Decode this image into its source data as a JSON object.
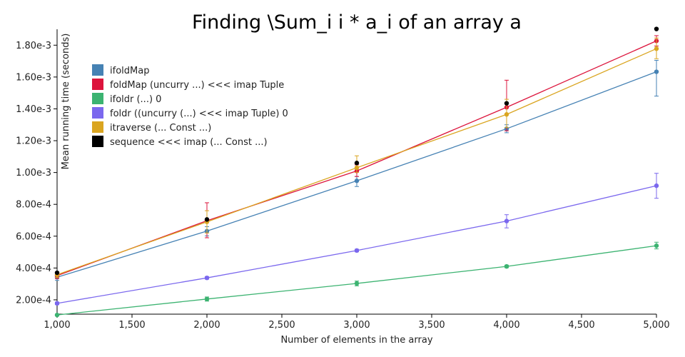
{
  "chart_data": {
    "type": "line",
    "title": "Finding \\Sum_i i * a_i of an array a",
    "xlabel": "Number of elements in the array",
    "ylabel": "Mean running time (seconds)",
    "xlim": [
      1000,
      5000
    ],
    "ylim": [
      0.00011,
      0.0019
    ],
    "x_ticks": [
      1000,
      1500,
      2000,
      2500,
      3000,
      3500,
      4000,
      4500,
      5000
    ],
    "x_tick_labels": [
      "1,000",
      "1,500",
      "2,000",
      "2,500",
      "3,000",
      "3,500",
      "4,000",
      "4,500",
      "5,000"
    ],
    "y_ticks": [
      0.0002,
      0.0004,
      0.0006,
      0.0008,
      0.001,
      0.0012,
      0.0014,
      0.0016,
      0.0018
    ],
    "y_tick_labels": [
      "2.00e-4",
      "4.00e-4",
      "6.00e-4",
      "8.00e-4",
      "1.00e-3",
      "1.20e-3",
      "1.40e-3",
      "1.60e-3",
      "1.80e-3"
    ],
    "grid": false,
    "legend_position": "top-left",
    "x": [
      1000,
      2000,
      3000,
      4000,
      5000
    ],
    "series": [
      {
        "name": "ifoldMap",
        "color": "#4682b4",
        "values": [
          0.000342,
          0.000632,
          0.000948,
          0.001275,
          0.001633
        ],
        "err_low": [
          0.000322,
          0.000602,
          0.000912,
          0.00125,
          0.00148
        ],
        "err_high": [
          0.000362,
          0.00066,
          0.000975,
          0.0013,
          0.001705
        ]
      },
      {
        "name": "foldMap (uncurry ...) <<< imap Tuple",
        "color": "#dc143c",
        "values": [
          0.000352,
          0.000697,
          0.00101,
          0.00141,
          0.001827
        ],
        "err_low": [
          0.000333,
          0.00059,
          0.000975,
          0.001262,
          0.001795
        ],
        "err_high": [
          0.000372,
          0.00081,
          0.001048,
          0.00158,
          0.00186
        ]
      },
      {
        "name": "ifoldr (...) 0",
        "color": "#3cb371",
        "values": [
          0.000105,
          0.000205,
          0.000303,
          0.00041,
          0.00054
        ],
        "err_low": [
          0.0001,
          0.000192,
          0.000288,
          0.000402,
          0.00052
        ],
        "err_high": [
          0.00011,
          0.000218,
          0.000318,
          0.000418,
          0.000562
        ]
      },
      {
        "name": "foldr ((uncurry (...) <<< imap Tuple) 0",
        "color": "#7b68ee",
        "values": [
          0.000178,
          0.000338,
          0.00051,
          0.000695,
          0.000917
        ],
        "err_low": [
          0.00017,
          0.00033,
          0.000502,
          0.000652,
          0.000838
        ],
        "err_high": [
          0.000186,
          0.000346,
          0.000518,
          0.000735,
          0.000995
        ]
      },
      {
        "name": "itraverse (... Const ...)",
        "color": "#daa520",
        "values": [
          0.000358,
          0.00069,
          0.00103,
          0.001365,
          0.001778
        ],
        "err_low": [
          0.00034,
          0.00062,
          0.001,
          0.001282,
          0.001715
        ],
        "err_high": [
          0.000376,
          0.00076,
          0.001105,
          0.00146,
          0.001845
        ]
      },
      {
        "name": "sequence <<< imap (... Const ...)",
        "color": "#000000",
        "values": [
          0.00037,
          0.000705,
          0.00106,
          0.001435,
          0.001902
        ],
        "points_only": true
      }
    ]
  }
}
